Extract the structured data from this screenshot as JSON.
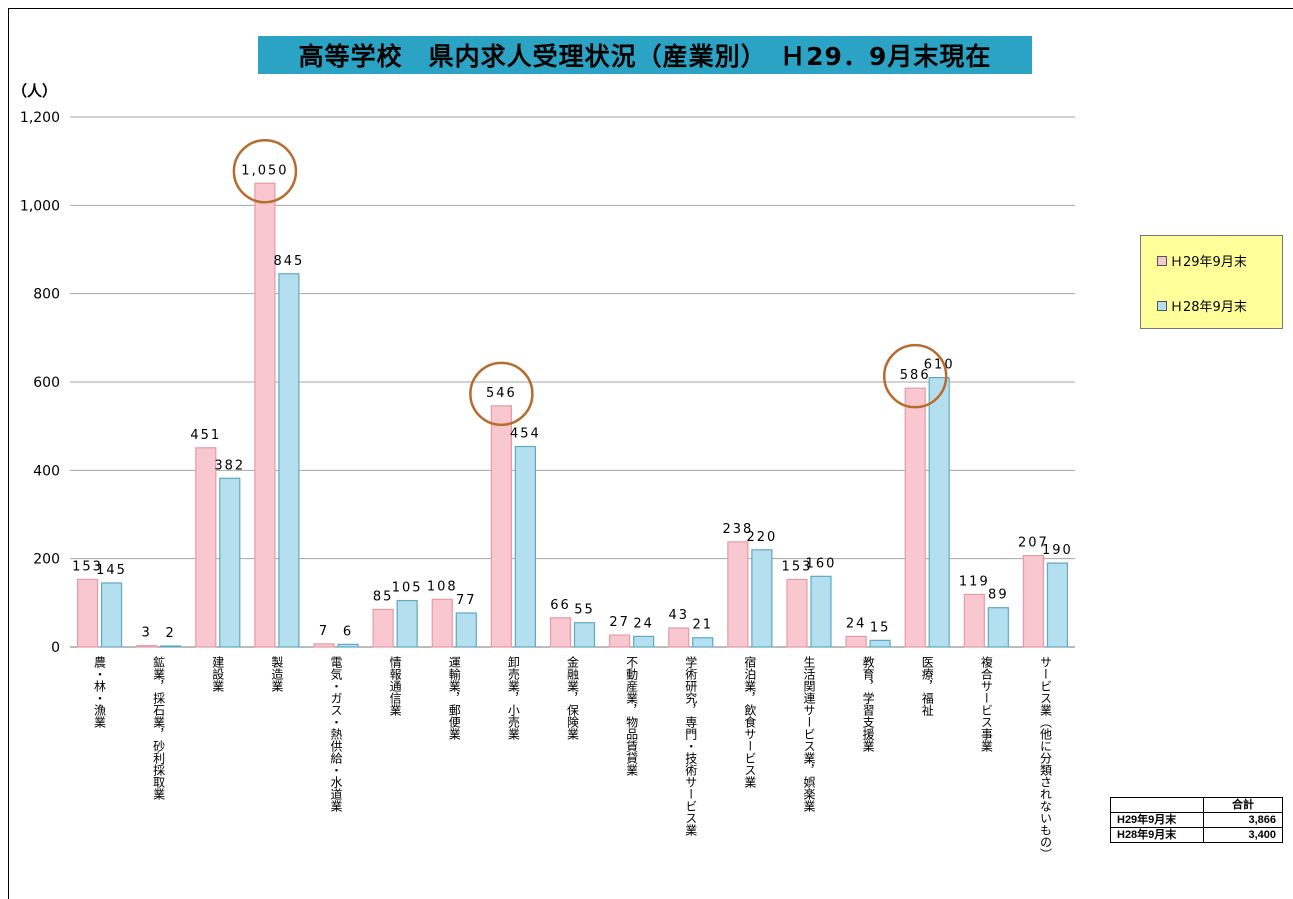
{
  "title": "高等学校　県内求人受理状況（産業別）　Ｈ29．9月末現在",
  "unit_label": "（人）",
  "legend": [
    {
      "label": "Ｈ29年9月末",
      "color": "#f9c7cf"
    },
    {
      "label": "Ｈ28年9月末",
      "color": "#b3dfee"
    }
  ],
  "totals_table": {
    "header": "合計",
    "rows": [
      {
        "label": "H29年9月末",
        "value": "3,866"
      },
      {
        "label": "H28年9月末",
        "value": "3,400"
      }
    ]
  },
  "chart_data": {
    "type": "bar",
    "title": "高等学校　県内求人受理状況（産業別）　Ｈ29．9月末現在",
    "ylabel": "（人）",
    "ylim": [
      0,
      1200
    ],
    "yticks": [
      "0",
      "200",
      "400",
      "600",
      "800",
      "1,000",
      "1,200"
    ],
    "yticks_values": [
      0,
      200,
      400,
      600,
      800,
      1000,
      1200
    ],
    "grid": true,
    "legend_position": "right",
    "categories": [
      "農・林・漁業",
      "鉱業，採石業，砂利採取業",
      "建設業",
      "製造業",
      "電気・ガス・熱供給・水道業",
      "情報通信業",
      "運輸業，郵便業",
      "卸売業，小売業",
      "金融業，保険業",
      "不動産業，物品賃貸業",
      "学術研究，専門・技術サービス業",
      "宿泊業，飲食サービス業",
      "生活関連サービス業，娯楽業",
      "教育，学習支援業",
      "医療，福祉",
      "複合サービス事業",
      "サービス業（他に分類されないもの）"
    ],
    "series": [
      {
        "name": "Ｈ29年9月末",
        "values": [
          153,
          3,
          451,
          1050,
          7,
          85,
          108,
          546,
          66,
          27,
          43,
          238,
          153,
          24,
          586,
          119,
          207
        ],
        "labels": [
          "153",
          "3",
          "451",
          "1,050",
          "7",
          "85",
          "108",
          "546",
          "66",
          "27",
          "43",
          "238",
          "153",
          "24",
          "586",
          "119",
          "207"
        ],
        "color": "#f9c7cf",
        "edge": "#e79aa6"
      },
      {
        "name": "Ｈ28年9月末",
        "values": [
          145,
          2,
          382,
          845,
          6,
          105,
          77,
          454,
          55,
          24,
          21,
          220,
          160,
          15,
          610,
          89,
          190
        ],
        "labels": [
          "145",
          "2",
          "382",
          "845",
          "6",
          "105",
          "77",
          "454",
          "55",
          "24",
          "21",
          "220",
          "160",
          "15",
          "610",
          "89",
          "190"
        ],
        "color": "#b3dfee",
        "edge": "#5fa9c4"
      }
    ],
    "highlighted_categories": [
      "製造業",
      "卸売業，小売業",
      "医療，福祉"
    ],
    "highlight_color": "#b86b2c"
  }
}
